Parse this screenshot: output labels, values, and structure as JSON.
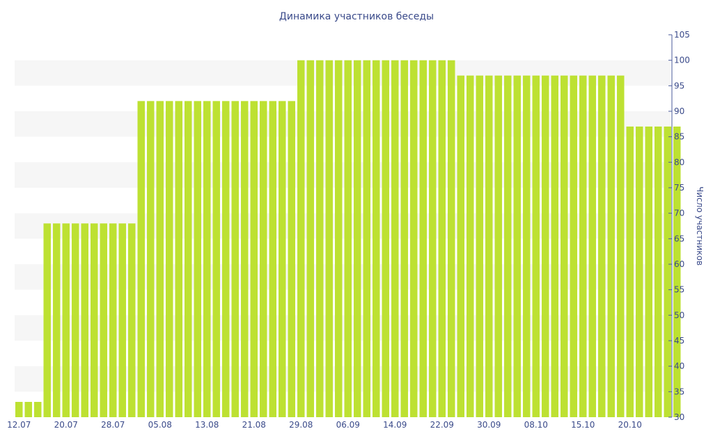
{
  "chart_data": {
    "type": "bar",
    "title": "Динамика участников беседы",
    "ylabel": "Число участников",
    "xlabel": "",
    "ylim": [
      30,
      105
    ],
    "yticks": [
      30,
      35,
      40,
      45,
      50,
      55,
      60,
      65,
      70,
      75,
      80,
      85,
      90,
      95,
      100,
      105
    ],
    "y_axis_side": "right",
    "grid": "alternating-bands",
    "bar_color": "#bde132",
    "text_color": "#3a4a8a",
    "xtick_labels": [
      "12.07",
      "20.07",
      "28.07",
      "05.08",
      "13.08",
      "21.08",
      "29.08",
      "06.09",
      "14.09",
      "22.09",
      "30.09",
      "08.10",
      "15.10",
      "20.10"
    ],
    "xtick_positions": [
      0,
      5,
      10,
      15,
      20,
      25,
      30,
      35,
      40,
      45,
      50,
      55,
      60,
      65
    ],
    "values": [
      33,
      33,
      33,
      68,
      68,
      68,
      68,
      68,
      68,
      68,
      68,
      68,
      68,
      92,
      92,
      92,
      92,
      92,
      92,
      92,
      92,
      92,
      92,
      92,
      92,
      92,
      92,
      92,
      92,
      92,
      100,
      100,
      100,
      100,
      100,
      100,
      100,
      100,
      100,
      100,
      100,
      100,
      100,
      100,
      100,
      100,
      100,
      97,
      97,
      97,
      97,
      97,
      97,
      97,
      97,
      97,
      97,
      97,
      97,
      97,
      97,
      97,
      97,
      97,
      97,
      87,
      87,
      87,
      87,
      87,
      87
    ]
  }
}
